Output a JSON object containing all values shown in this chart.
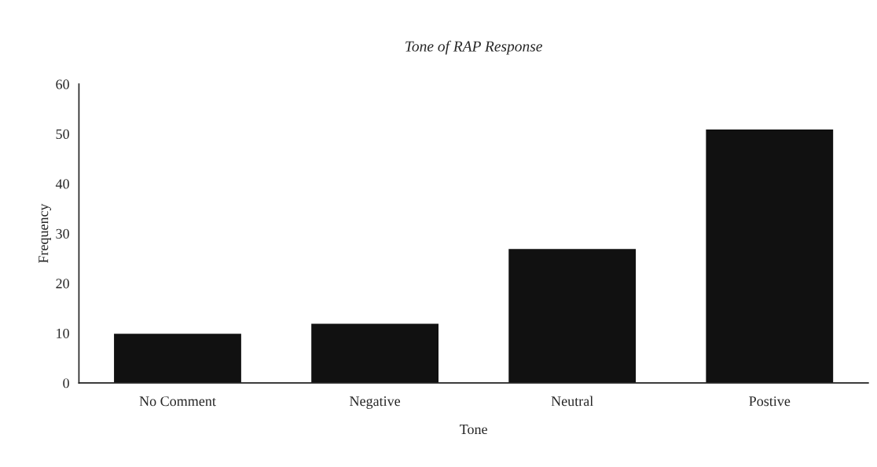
{
  "chart_data": {
    "type": "bar",
    "title": "Tone of RAP Response",
    "xlabel": "Tone",
    "ylabel": "Frequency",
    "categories": [
      "No Comment",
      "Negative",
      "Neutral",
      "Postive"
    ],
    "values": [
      10,
      12,
      27,
      51
    ],
    "color": "#111111",
    "ylim": [
      0,
      60
    ],
    "yticks": [
      0,
      10,
      20,
      30,
      40,
      50,
      60
    ],
    "grid": false
  }
}
